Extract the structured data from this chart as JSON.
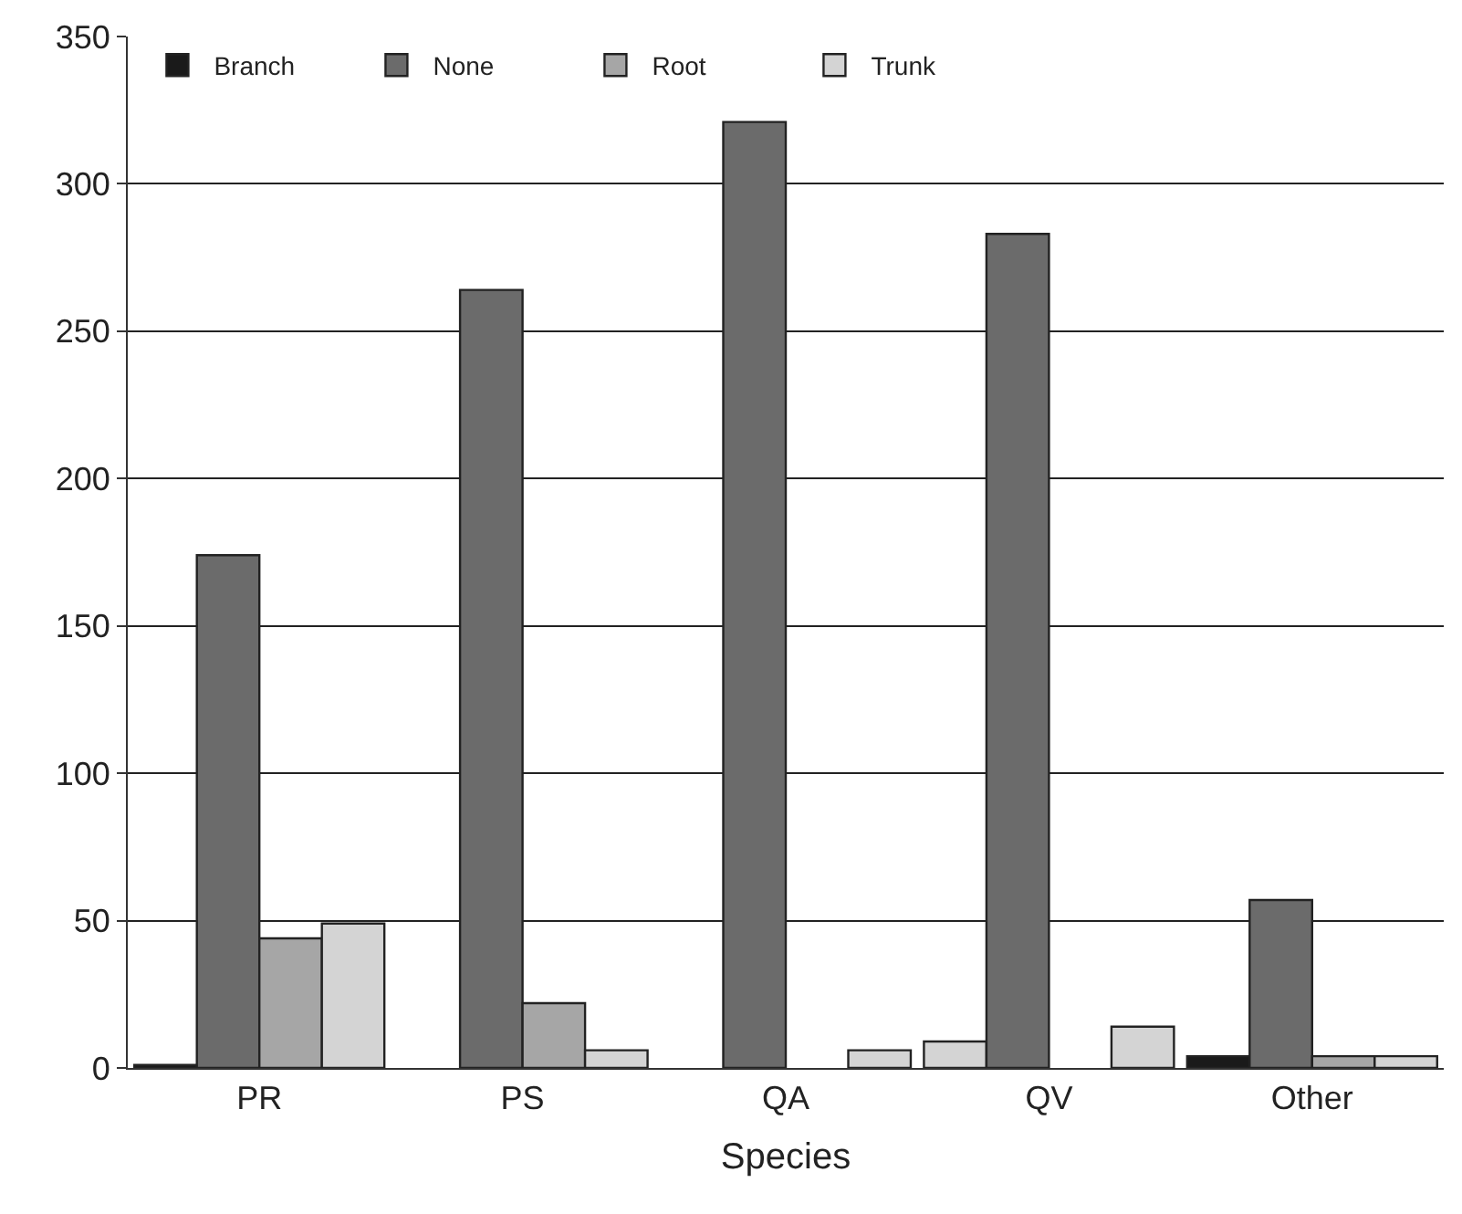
{
  "chart_data": {
    "type": "bar",
    "xlabel": "Species",
    "categories": [
      "PR",
      "PS",
      "QA",
      "QV",
      "Other"
    ],
    "series": [
      {
        "name": "Branch",
        "color": "#1a1a1a",
        "colors": [
          "#1a1a1a",
          "#1a1a1a",
          "#1a1a1a",
          "#d4d4d4",
          "#1a1a1a"
        ],
        "values": [
          1,
          0,
          0,
          9,
          4
        ]
      },
      {
        "name": "None",
        "color": "#6b6b6b",
        "values": [
          174,
          264,
          321,
          283,
          57
        ]
      },
      {
        "name": "Root",
        "color": "#a6a6a6",
        "values": [
          44,
          22,
          0,
          0,
          4
        ]
      },
      {
        "name": "Trunk",
        "color": "#d4d4d4",
        "values": [
          49,
          6,
          6,
          14,
          4
        ]
      }
    ],
    "ylim": [
      0,
      350
    ],
    "yticks": [
      0,
      50,
      100,
      150,
      200,
      250,
      300,
      350
    ],
    "grid": "y",
    "legend": "top left"
  }
}
